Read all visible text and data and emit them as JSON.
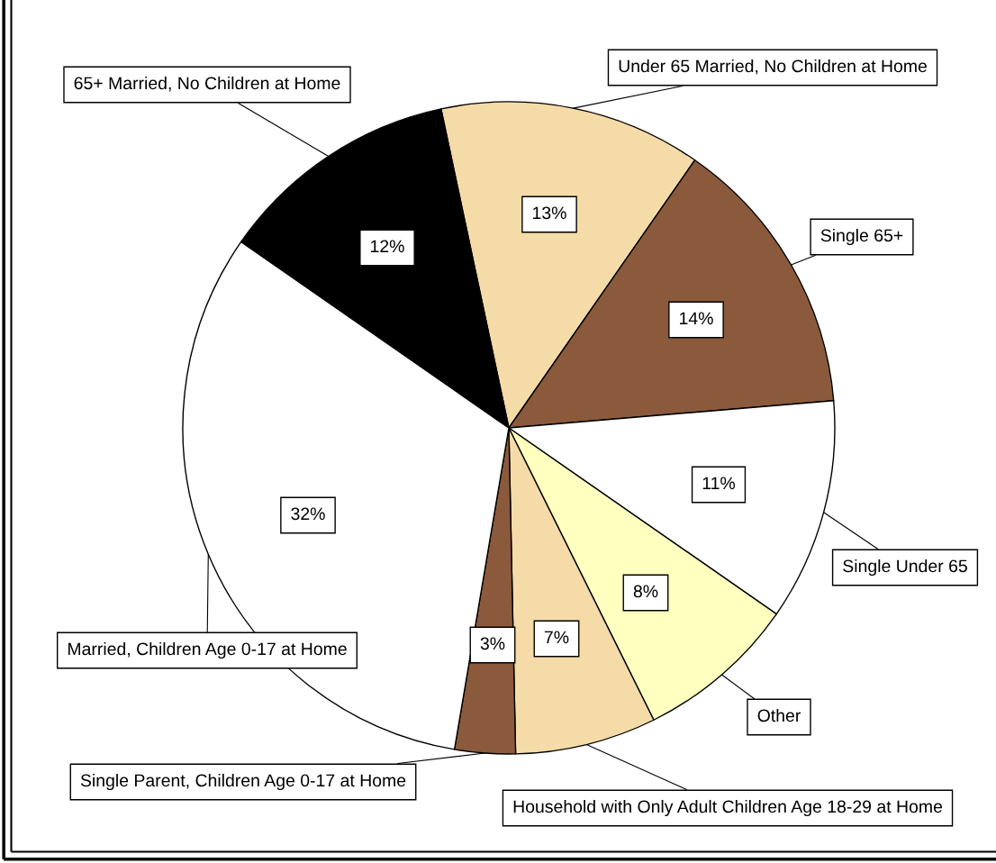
{
  "chart_data": {
    "type": "pie",
    "categories": [
      "Under 65 Married, No Children at Home",
      "Single 65+",
      "Single Under 65",
      "Other",
      "Household with Only Adult Children Age 18-29 at Home",
      "Single Parent, Children Age 0-17 at Home",
      "Married, Children Age 0-17 at Home",
      "65+ Married, No Children at Home"
    ],
    "values": [
      13,
      14,
      11,
      8,
      7,
      3,
      32,
      12
    ],
    "colors": [
      "#f5dba8",
      "#8b5a3c",
      "#ffffff",
      "#ffffc0",
      "#f5dba8",
      "#8b5a3c",
      "#ffffff",
      "#000000"
    ],
    "value_labels": [
      "13%",
      "14%",
      "11%",
      "8%",
      "7%",
      "3%",
      "32%",
      "12%"
    ]
  }
}
